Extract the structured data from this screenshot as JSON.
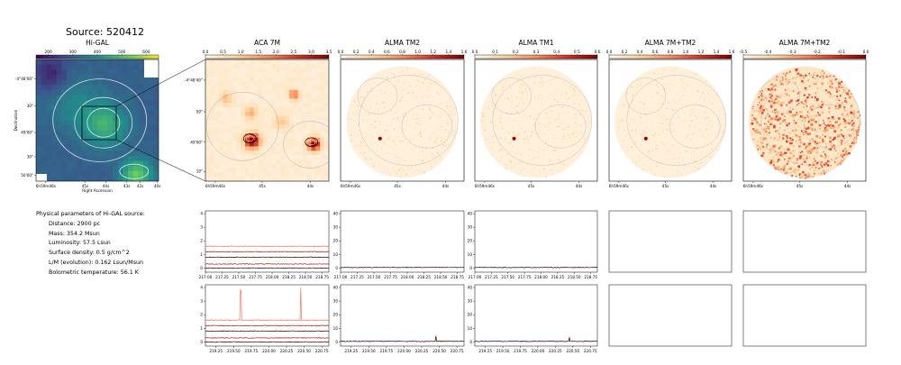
{
  "source_title": "Source: 520412",
  "params": {
    "header": "Physical parameters of Hi-GAL source:",
    "lines": [
      "Distance: 2900 pc",
      "Mass: 354.2 Msun",
      "Luminosity: 57.5 Lsun",
      "Surface density: 0.5 g/cm^2",
      "L/M (evolution): 0.162 Lsun/Msun",
      "Bolometric temperature: 56.1 K"
    ]
  },
  "colors": {
    "viridis_lo": "#440154",
    "viridis_hi": "#fde725",
    "orrd_lo": "#fff7ec",
    "orrd_hi": "#7f0000",
    "spec_dark": "#3a0000",
    "spec_mid": "#b31a1a",
    "spec_light": "#f07a5e"
  },
  "chart_data": [
    {
      "type": "heatmap",
      "title": "Hi-GAL",
      "colorbar_ticks": [
        "200",
        "300",
        "400",
        "500",
        "600"
      ],
      "xlabel": "Right Ascension",
      "ylabel": "Declination",
      "x_ticks": [
        "6h59m46s",
        "45s",
        "44s",
        "43s",
        "42s",
        "40s"
      ],
      "y_ticks": [
        "-4°48'00\"",
        "30\"",
        "49'00\"",
        "30\"",
        "50'00\""
      ]
    },
    {
      "type": "heatmap",
      "title": "ACA 7M",
      "colorbar_ticks": [
        "0.0",
        "0.5",
        "1.0",
        "1.5",
        "2.0",
        "2.5",
        "3.0",
        "3.5"
      ],
      "x_ticks": [
        "6h59m46s",
        "45s",
        "44s"
      ],
      "y_ticks": [
        "-4°48'40\"",
        "50\"",
        "49'00\"",
        "10\""
      ]
    },
    {
      "type": "heatmap",
      "title": "ALMA TM2",
      "colorbar_ticks": [
        "0.0",
        "0.2",
        "0.4",
        "0.6",
        "0.8",
        "1.0",
        "1.2",
        "1.4",
        "1.6"
      ],
      "x_ticks": [
        "6h59m46s",
        "45s",
        "44s"
      ]
    },
    {
      "type": "heatmap",
      "title": "ALMA TM1",
      "colorbar_ticks": [
        "0.0",
        "0.1",
        "0.2",
        "0.3",
        "0.4",
        "0.5",
        "0.6"
      ],
      "x_ticks": [
        "6h59m46s",
        "45s",
        "44s"
      ]
    },
    {
      "type": "heatmap",
      "title": "ALMA 7M+TM2",
      "colorbar_ticks": [
        "0.0",
        "0.2",
        "0.4",
        "0.6",
        "0.8",
        "1.0",
        "1.2",
        "1.4",
        "1.6"
      ],
      "x_ticks": [
        "6h59m46s",
        "45s",
        "44s"
      ]
    },
    {
      "type": "heatmap",
      "title": "ALMA 7M+TM2",
      "colorbar_ticks": [
        "-0.5",
        "-0.4",
        "-0.3",
        "-0.2",
        "-0.1",
        "0.0"
      ],
      "x_ticks": [
        "6h59m46s",
        "45s",
        "44s"
      ]
    },
    {
      "type": "line",
      "panel": "ACA 7M spectrum (upper band)",
      "x_ticks": [
        "217.00",
        "217.25",
        "217.50",
        "217.75",
        "218.00",
        "218.25",
        "218.50",
        "218.75"
      ],
      "y_ticks": [
        "0",
        "1",
        "2",
        "3",
        "4"
      ],
      "ylim": [
        -0.3,
        4.2
      ],
      "series": [
        {
          "offset": 1.6,
          "color": "light"
        },
        {
          "offset": 1.2,
          "color": "mid"
        },
        {
          "offset": 0.8,
          "color": "dark"
        },
        {
          "offset": 0.3,
          "color": "mid"
        },
        {
          "offset": 0.0,
          "color": "dark"
        }
      ]
    },
    {
      "type": "line",
      "panel": "ALMA TM2 spectrum (upper band)",
      "x_ticks": [
        "217.00",
        "217.25",
        "217.50",
        "217.75",
        "218.00",
        "218.25",
        "218.50",
        "218.75"
      ],
      "y_ticks": [
        "0",
        "10",
        "20",
        "30",
        "40"
      ],
      "ylim": [
        -3,
        42
      ],
      "series": [
        {
          "offset": 0.5,
          "color": "dark"
        }
      ]
    },
    {
      "type": "line",
      "panel": "ALMA TM1 spectrum (upper band)",
      "x_ticks": [
        "217.00",
        "217.25",
        "217.50",
        "217.75",
        "218.00",
        "218.25",
        "218.50",
        "218.75"
      ],
      "y_ticks": [
        "0",
        "10",
        "20",
        "30",
        "40"
      ],
      "ylim": [
        -3,
        42
      ],
      "series": [
        {
          "offset": 0.5,
          "color": "dark"
        }
      ]
    },
    {
      "type": "line",
      "panel": "ACA 7M spectrum (lower band)",
      "x_ticks": [
        "219.25",
        "219.50",
        "219.75",
        "220.00",
        "220.25",
        "220.50",
        "220.75"
      ],
      "y_ticks": [
        "0",
        "1",
        "2",
        "3",
        "4"
      ],
      "ylim": [
        -0.3,
        4.2
      ],
      "series": [
        {
          "offset": 1.6,
          "color": "light",
          "peaks": [
            [
              219.6,
              2.2
            ],
            [
              220.45,
              2.4
            ]
          ]
        },
        {
          "offset": 1.2,
          "color": "mid"
        },
        {
          "offset": 0.8,
          "color": "dark"
        },
        {
          "offset": 0.3,
          "color": "mid"
        },
        {
          "offset": 0.0,
          "color": "dark"
        }
      ]
    },
    {
      "type": "line",
      "panel": "ALMA TM2 spectrum (lower band)",
      "x_ticks": [
        "219.25",
        "219.50",
        "219.75",
        "220.00",
        "220.25",
        "220.50",
        "220.75"
      ],
      "y_ticks": [
        "0",
        "10",
        "20",
        "30",
        "40"
      ],
      "ylim": [
        -3,
        42
      ],
      "series": [
        {
          "offset": 0.5,
          "color": "dark",
          "peaks": [
            [
              220.45,
              4.0
            ]
          ]
        }
      ]
    },
    {
      "type": "line",
      "panel": "ALMA TM1 spectrum (lower band)",
      "x_ticks": [
        "219.25",
        "219.50",
        "219.75",
        "220.00",
        "220.25",
        "220.50",
        "220.75"
      ],
      "y_ticks": [
        "0",
        "10",
        "20",
        "30",
        "40"
      ],
      "ylim": [
        -3,
        42
      ],
      "series": [
        {
          "offset": 0.5,
          "color": "dark",
          "peaks": [
            [
              220.45,
              3.0
            ]
          ]
        }
      ]
    }
  ]
}
